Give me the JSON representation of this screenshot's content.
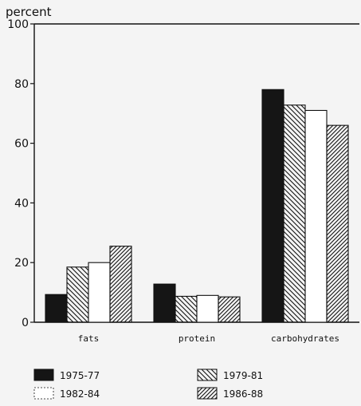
{
  "chart_data": {
    "type": "bar",
    "ylabel": "percent",
    "xlabel": "",
    "title": "",
    "ylim": [
      0,
      100
    ],
    "yticks": [
      0,
      20,
      40,
      60,
      80,
      100
    ],
    "categories": [
      "fats",
      "protein",
      "carbohydrates"
    ],
    "series": [
      {
        "name": "1975-77",
        "values": [
          9.3,
          12.8,
          78.0
        ],
        "fill": "solid"
      },
      {
        "name": "1979-81",
        "values": [
          18.5,
          8.7,
          72.8
        ],
        "fill": "hatch-back"
      },
      {
        "name": "1982-84",
        "values": [
          20.0,
          9.0,
          71.0
        ],
        "fill": "white"
      },
      {
        "name": "1986-88",
        "values": [
          25.5,
          8.5,
          66.0
        ],
        "fill": "hatch-forward"
      }
    ],
    "grid": false,
    "legend_position": "bottom"
  },
  "colors": {
    "bar_dark": "#151515",
    "outline": "#111111",
    "background": "#f4f4f4"
  }
}
